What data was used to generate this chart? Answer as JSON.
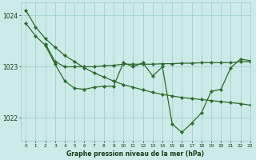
{
  "title": "Graphe pression niveau de la mer (hPa)",
  "bg_color": "#cceae7",
  "grid_color": "#99ccc8",
  "line_color": "#2d6a2d",
  "xlim": [
    -0.5,
    23
  ],
  "ylim": [
    1021.55,
    1024.25
  ],
  "yticks": [
    1022,
    1023,
    1024
  ],
  "ytick_labels": [
    "1022",
    "1023",
    "1024"
  ],
  "xtick_labels": [
    "0",
    "1",
    "2",
    "3",
    "4",
    "5",
    "6",
    "7",
    "8",
    "9",
    "10",
    "11",
    "12",
    "13",
    "14",
    "15",
    "16",
    "17",
    "18",
    "19",
    "20",
    "21",
    "22",
    "23"
  ],
  "line1_x": [
    0,
    1,
    2,
    3,
    4,
    5,
    6,
    7,
    8,
    9,
    10,
    11,
    12,
    13,
    14,
    15,
    16,
    17,
    18,
    19,
    20,
    21,
    22,
    23
  ],
  "line1_y": [
    1024.1,
    1023.78,
    1023.55,
    1023.38,
    1023.22,
    1023.1,
    1022.98,
    1022.88,
    1022.8,
    1022.72,
    1022.65,
    1022.6,
    1022.55,
    1022.5,
    1022.46,
    1022.43,
    1022.4,
    1022.38,
    1022.36,
    1022.34,
    1022.32,
    1022.3,
    1022.28,
    1022.25
  ],
  "line2_x": [
    2,
    3,
    4,
    5,
    6,
    7,
    8,
    9,
    10,
    11,
    12,
    13,
    14,
    15,
    16,
    17,
    18,
    19,
    20,
    21,
    22,
    23
  ],
  "line2_y": [
    1023.45,
    1023.1,
    1023.0,
    1023.0,
    1023.0,
    1023.0,
    1023.02,
    1023.03,
    1023.05,
    1023.05,
    1023.05,
    1023.05,
    1023.06,
    1023.06,
    1023.07,
    1023.07,
    1023.08,
    1023.08,
    1023.08,
    1023.08,
    1023.1,
    1023.1
  ],
  "line3_x": [
    0,
    1,
    2,
    3,
    4,
    5,
    6,
    7,
    8,
    9,
    10,
    11,
    12,
    13,
    14,
    15,
    16,
    17,
    18,
    19,
    20,
    21,
    22,
    23
  ],
  "line3_y": [
    1023.85,
    1023.6,
    1023.42,
    1023.05,
    1022.72,
    1022.58,
    1022.56,
    1022.6,
    1022.62,
    1022.62,
    1023.08,
    1023.0,
    1023.08,
    1022.82,
    1023.0,
    1021.88,
    1021.72,
    1021.9,
    1022.1,
    1022.52,
    1022.56,
    1022.98,
    1023.15,
    1023.12
  ]
}
